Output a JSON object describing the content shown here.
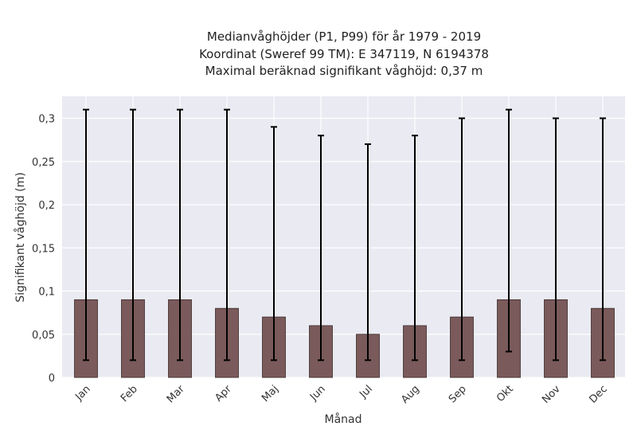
{
  "chart_data": {
    "type": "bar",
    "title_lines": [
      "Medianvåghöjder (P1, P99) för år 1979 - 2019",
      "Koordinat (Sweref 99 TM): E 347119, N 6194378",
      "Maximal beräknad signifikant våghöjd: 0,37 m"
    ],
    "xlabel": "Månad",
    "ylabel": "Signifikant våghöjd (m)",
    "categories": [
      "Jan",
      "Feb",
      "Mar",
      "Apr",
      "Maj",
      "Jun",
      "Jul",
      "Aug",
      "Sep",
      "Okt",
      "Nov",
      "Dec"
    ],
    "values": [
      0.09,
      0.09,
      0.09,
      0.08,
      0.07,
      0.06,
      0.05,
      0.06,
      0.07,
      0.09,
      0.09,
      0.08
    ],
    "error_low": [
      0.02,
      0.02,
      0.02,
      0.02,
      0.02,
      0.02,
      0.02,
      0.02,
      0.02,
      0.03,
      0.02,
      0.02
    ],
    "error_high": [
      0.31,
      0.31,
      0.31,
      0.31,
      0.29,
      0.28,
      0.27,
      0.28,
      0.3,
      0.31,
      0.3,
      0.3
    ],
    "ylim": [
      0,
      0.325
    ],
    "yticks": [
      0,
      0.05,
      0.1,
      0.15,
      0.2,
      0.25,
      0.3
    ],
    "ytick_labels": [
      "0",
      "0,05",
      "0,1",
      "0,15",
      "0,2",
      "0,25",
      "0,3"
    ],
    "grid": true,
    "bar_color": "#7a5a5a",
    "plot_background": "#eaeaf2"
  }
}
